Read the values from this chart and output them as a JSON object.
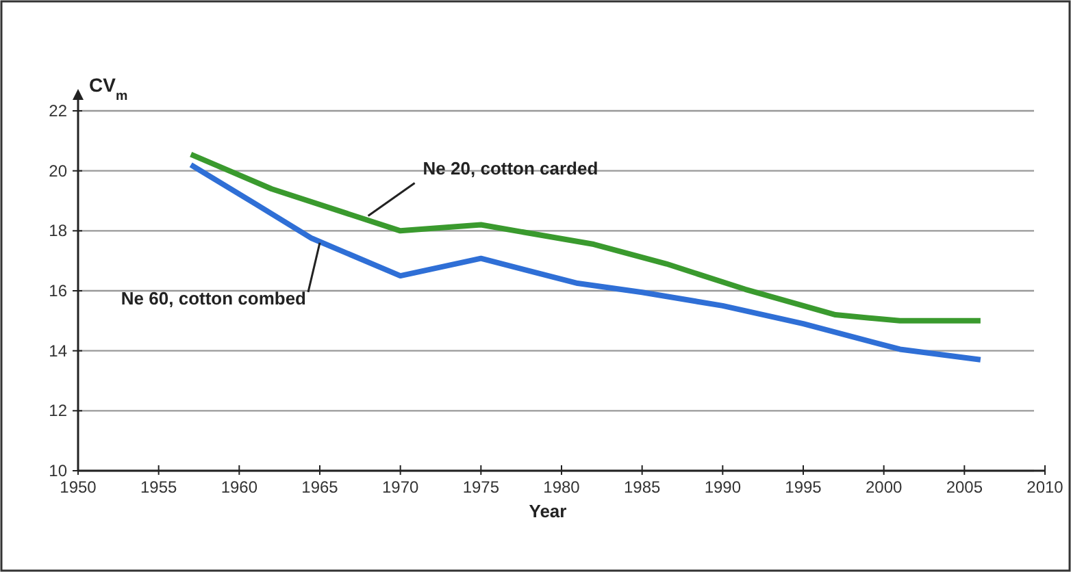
{
  "chart_data": {
    "type": "line",
    "ylabel": "CV$_{m}$",
    "xlabel": "Year",
    "xlim": [
      1950,
      2010
    ],
    "xticks": [
      1950,
      1955,
      1960,
      1965,
      1970,
      1975,
      1980,
      1985,
      1990,
      1995,
      2000,
      2005,
      2010
    ],
    "ylim": [
      10,
      22
    ],
    "yticks": [
      10,
      12,
      14,
      16,
      18,
      20,
      22
    ],
    "grid": "y",
    "line_style": "solid",
    "marker": "none",
    "series": [
      {
        "color": "#3a9a2e",
        "x": [
          1957,
          1962,
          1970,
          1975,
          1982,
          1986.5,
          1991.4,
          1997,
          2001,
          2006
        ],
        "values": [
          20.55,
          19.4,
          18.0,
          18.2,
          17.55,
          16.9,
          16.05,
          15.2,
          15.0,
          15.0
        ]
      },
      {
        "color": "#2f6fd6",
        "x": [
          1957,
          1961,
          1964.5,
          1970,
          1975,
          1981,
          1985,
          1990,
          1995,
          2001,
          2006
        ],
        "values": [
          20.2,
          18.9,
          17.75,
          16.5,
          17.08,
          16.25,
          15.95,
          15.5,
          14.9,
          14.05,
          13.7
        ]
      }
    ],
    "annotations": [
      {
        "text": "Ne 20, cotton carded",
        "x": 1968,
        "y": 18.5
      },
      {
        "text": "Ne 60, cotton combed",
        "x": 1965,
        "y": 17.6
      }
    ]
  }
}
